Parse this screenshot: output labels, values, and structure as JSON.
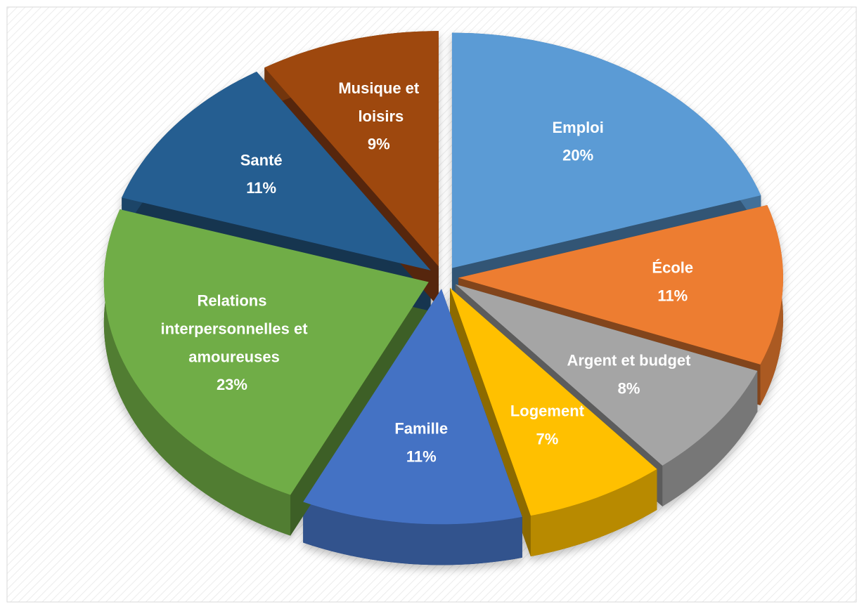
{
  "chart_data": {
    "type": "pie",
    "categories": [
      "Emploi",
      "École",
      "Argent et budget",
      "Logement",
      "Famille",
      "Relations interpersonnelles et amoureuses",
      "Santé",
      "Musique et loisirs"
    ],
    "values": [
      20,
      11,
      8,
      7,
      11,
      23,
      11,
      9
    ],
    "value_labels": [
      "20%",
      "11%",
      "8%",
      "7%",
      "11%",
      "23%",
      "11%",
      "9%"
    ],
    "colors": [
      "#5b9bd5",
      "#ed7d31",
      "#a5a5a5",
      "#ffc000",
      "#4472c4",
      "#70ad47",
      "#255e91",
      "#9e480e"
    ]
  }
}
